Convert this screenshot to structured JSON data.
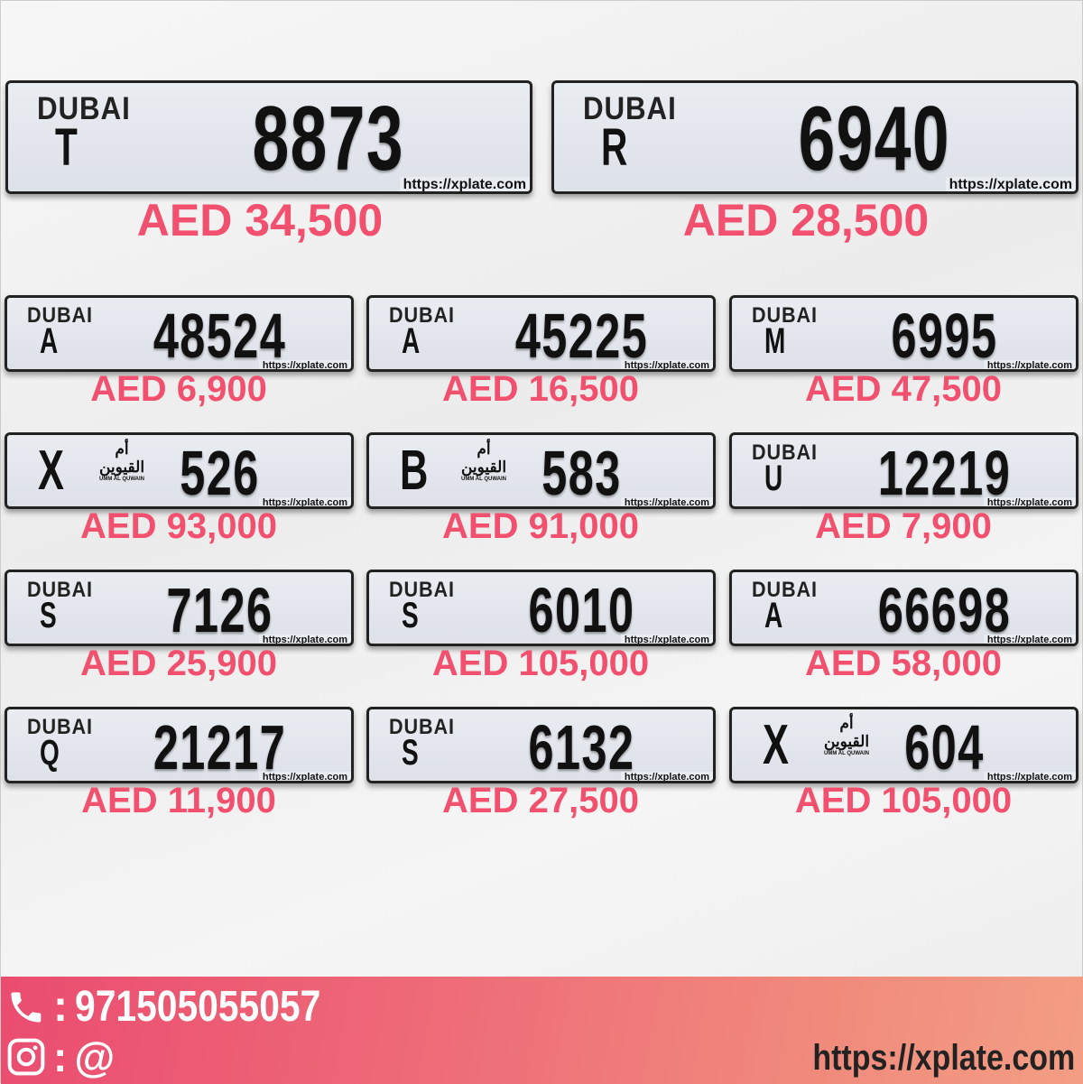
{
  "watermark": "https://xplate.com",
  "featured": [
    {
      "emirate": "DUBAI",
      "code": "T",
      "number": "8873",
      "price": "AED 34,500"
    },
    {
      "emirate": "DUBAI",
      "code": "R",
      "number": "6940",
      "price": "AED 28,500"
    }
  ],
  "plates": [
    {
      "emirate": "DUBAI",
      "code": "A",
      "number": "48524",
      "price": "AED 6,900"
    },
    {
      "emirate": "DUBAI",
      "code": "A",
      "number": "45225",
      "price": "AED 16,500"
    },
    {
      "emirate": "DUBAI",
      "code": "M",
      "number": "6995",
      "price": "AED 47,500"
    },
    {
      "emirate": "UMM AL QUWAIN",
      "code": "X",
      "number": "526",
      "price": "AED 93,000"
    },
    {
      "emirate": "UMM AL QUWAIN",
      "code": "B",
      "number": "583",
      "price": "AED 91,000"
    },
    {
      "emirate": "DUBAI",
      "code": "U",
      "number": "12219",
      "price": "AED 7,900"
    },
    {
      "emirate": "DUBAI",
      "code": "S",
      "number": "7126",
      "price": "AED 25,900"
    },
    {
      "emirate": "DUBAI",
      "code": "S",
      "number": "6010",
      "price": "AED 105,000"
    },
    {
      "emirate": "DUBAI",
      "code": "A",
      "number": "66698",
      "price": "AED 58,000"
    },
    {
      "emirate": "DUBAI",
      "code": "Q",
      "number": "21217",
      "price": "AED 11,900"
    },
    {
      "emirate": "DUBAI",
      "code": "S",
      "number": "6132",
      "price": "AED 27,500"
    },
    {
      "emirate": "UMM AL QUWAIN",
      "code": "X",
      "number": "604",
      "price": "AED 105,000"
    }
  ],
  "uaq_arabic": "أم القيوين",
  "footer": {
    "phone_sep": ":",
    "phone": "971505055057",
    "insta_sep": ":",
    "instagram": "@",
    "website": "https://xplate.com"
  },
  "colors": {
    "price": "#f2506f",
    "footer_start": "#ea4c70",
    "footer_end": "#f39e84"
  },
  "icons": {
    "phone": "phone-icon",
    "instagram": "instagram-icon"
  }
}
